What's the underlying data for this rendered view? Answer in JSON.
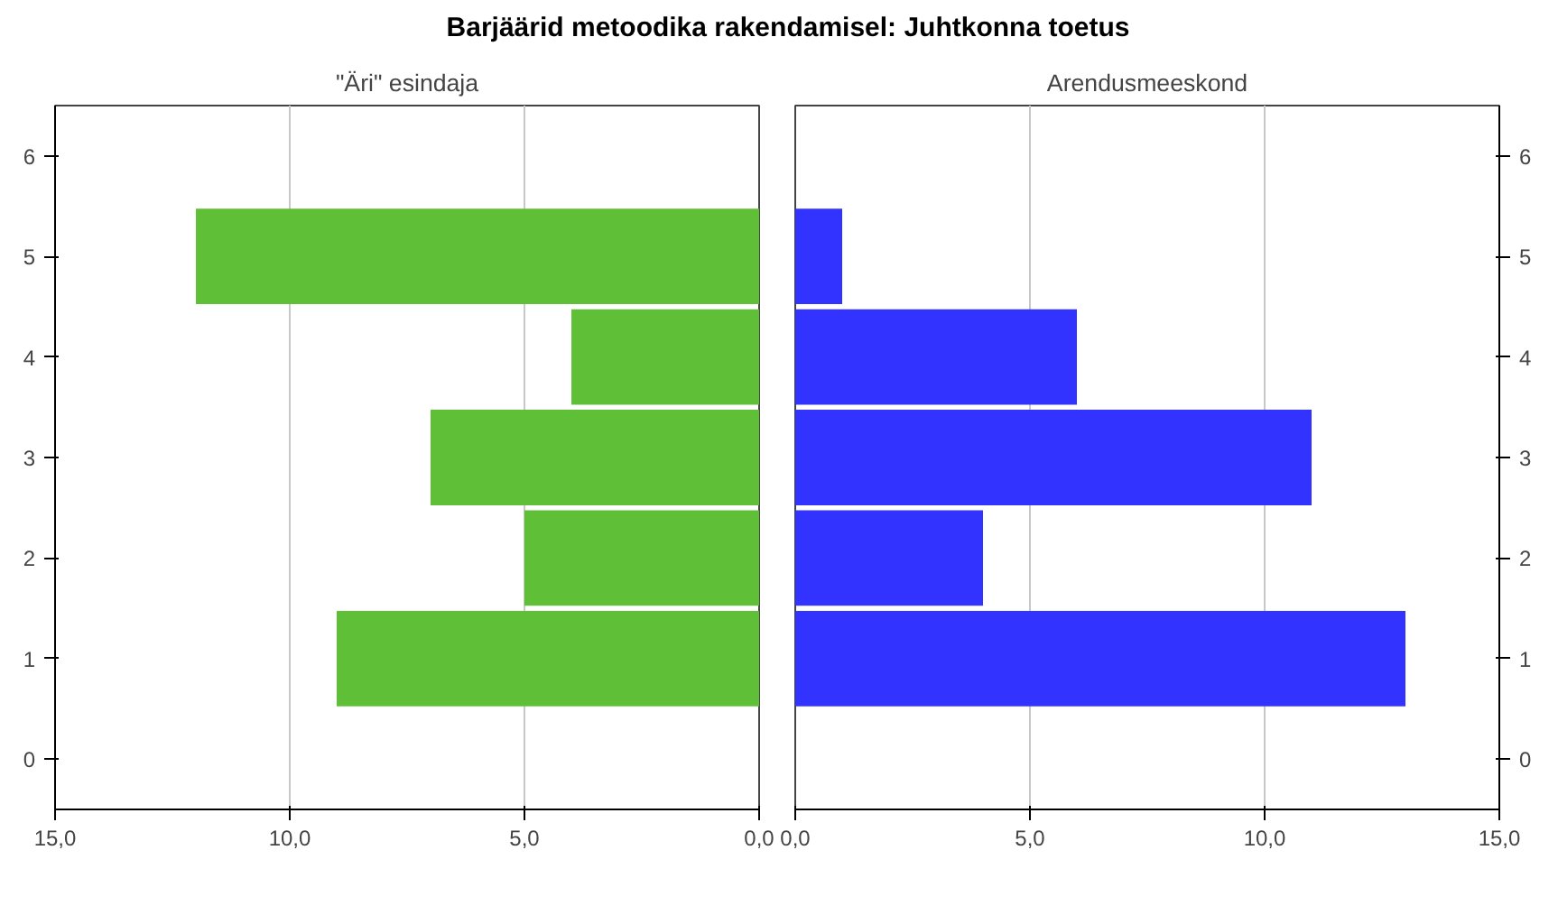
{
  "chart_data": [
    {
      "type": "bar",
      "orientation": "horizontal",
      "title": "Barjäärid metoodika rakendamisel: Juhtkonna toetus",
      "subtitle": "\"Äri\" esindaja",
      "categories": [
        "6",
        "5",
        "4",
        "3",
        "2",
        "1",
        "0"
      ],
      "series": [
        {
          "color": "#5fc038",
          "values": [
            null,
            12,
            4,
            7,
            5,
            9,
            null
          ]
        }
      ],
      "xlim": [
        15,
        0
      ],
      "xticks": [
        {
          "value": 15,
          "label": "15,0"
        },
        {
          "value": 10,
          "label": "10,0"
        },
        {
          "value": 5,
          "label": "5,0"
        },
        {
          "value": 0,
          "label": "0,0"
        }
      ],
      "grid": "x"
    },
    {
      "type": "bar",
      "orientation": "horizontal",
      "subtitle": "Arendusmeeskond",
      "categories": [
        "6",
        "5",
        "4",
        "3",
        "2",
        "1",
        "0"
      ],
      "series": [
        {
          "color": "#3333ff",
          "values": [
            null,
            1,
            6,
            11,
            4,
            13,
            null
          ]
        }
      ],
      "xlim": [
        0,
        15
      ],
      "xticks": [
        {
          "value": 0,
          "label": "0,0"
        },
        {
          "value": 5,
          "label": "5,0"
        },
        {
          "value": 10,
          "label": "10,0"
        },
        {
          "value": 15,
          "label": "15,0"
        }
      ],
      "grid": "x"
    }
  ]
}
